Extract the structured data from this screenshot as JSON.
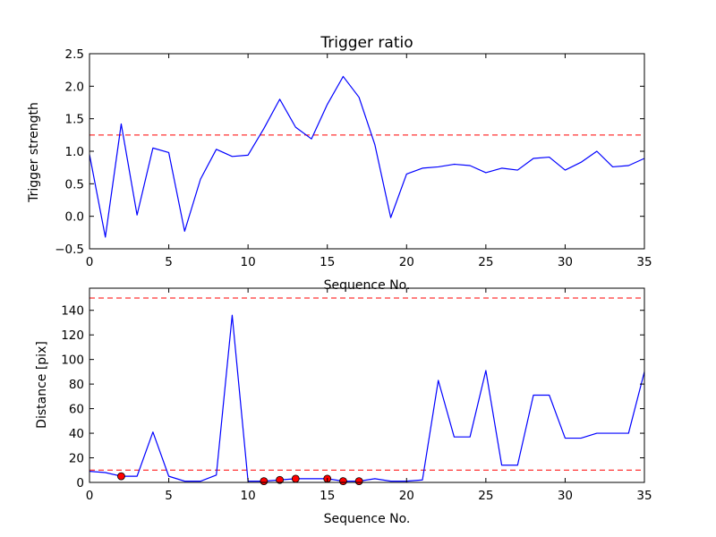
{
  "chart_data": [
    {
      "type": "line",
      "title": "Trigger ratio",
      "xlabel": "Sequence No.",
      "ylabel": "Trigger strength",
      "xlim": [
        0,
        35
      ],
      "ylim": [
        -0.5,
        2.5
      ],
      "xticks": [
        0,
        5,
        10,
        15,
        20,
        25,
        30,
        35
      ],
      "yticks": [
        -0.5,
        0.0,
        0.5,
        1.0,
        1.5,
        2.0,
        2.5
      ],
      "xtick_labels": [
        "0",
        "5",
        "10",
        "15",
        "20",
        "25",
        "30",
        "35"
      ],
      "ytick_labels": [
        "−0.5",
        "0.0",
        "0.5",
        "1.0",
        "1.5",
        "2.0",
        "2.5"
      ],
      "grid": false,
      "series": [
        {
          "color": "#0000ff",
          "x": [
            0,
            1,
            2,
            3,
            4,
            5,
            6,
            7,
            8,
            9,
            10,
            11,
            12,
            13,
            14,
            15,
            16,
            17,
            18,
            19,
            20,
            21,
            22,
            23,
            24,
            25,
            26,
            27,
            28,
            29,
            30,
            31,
            32,
            33,
            34,
            35
          ],
          "y": [
            0.95,
            -0.32,
            1.42,
            0.02,
            1.05,
            0.98,
            -0.23,
            0.57,
            1.03,
            0.92,
            0.94,
            1.35,
            1.8,
            1.37,
            1.19,
            1.72,
            2.15,
            1.83,
            1.1,
            -0.02,
            0.65,
            0.74,
            0.76,
            0.8,
            0.78,
            0.67,
            0.74,
            0.71,
            0.89,
            0.91,
            0.71,
            0.83,
            1.0,
            0.76,
            0.78,
            0.89
          ]
        }
      ],
      "hlines": [
        {
          "y": 1.25,
          "color": "#ff0000",
          "style": "dashed"
        }
      ]
    },
    {
      "type": "line",
      "title": "",
      "xlabel": "Sequence No.",
      "ylabel": "Distance [pix]",
      "xlim": [
        0,
        35
      ],
      "ylim": [
        0,
        158
      ],
      "xticks": [
        0,
        5,
        10,
        15,
        20,
        25,
        30,
        35
      ],
      "yticks": [
        0,
        20,
        40,
        60,
        80,
        100,
        120,
        140
      ],
      "xtick_labels": [
        "0",
        "5",
        "10",
        "15",
        "20",
        "25",
        "30",
        "35"
      ],
      "ytick_labels": [
        "0",
        "20",
        "40",
        "60",
        "80",
        "100",
        "120",
        "140"
      ],
      "grid": false,
      "series": [
        {
          "color": "#0000ff",
          "x": [
            0,
            1,
            2,
            3,
            4,
            5,
            6,
            7,
            8,
            9,
            10,
            11,
            12,
            13,
            14,
            15,
            16,
            17,
            18,
            19,
            20,
            21,
            22,
            23,
            24,
            25,
            26,
            27,
            28,
            29,
            30,
            31,
            32,
            33,
            34,
            35
          ],
          "y": [
            9,
            8,
            5,
            5,
            41,
            5,
            1,
            1,
            6,
            136,
            1,
            1,
            2,
            3,
            3,
            3,
            1,
            1,
            3,
            1,
            1,
            2,
            83,
            37,
            37,
            91,
            14,
            14,
            71,
            71,
            36,
            36,
            40,
            40,
            40,
            90
          ]
        }
      ],
      "markers": {
        "color": "#ff0000",
        "edge": "#000000",
        "x": [
          2,
          11,
          12,
          13,
          15,
          16,
          17
        ],
        "y": [
          5,
          1,
          2,
          3,
          3,
          1,
          1
        ]
      },
      "hlines": [
        {
          "y": 150,
          "color": "#ff0000",
          "style": "dashed"
        },
        {
          "y": 10,
          "color": "#ff0000",
          "style": "dashed"
        }
      ]
    }
  ]
}
